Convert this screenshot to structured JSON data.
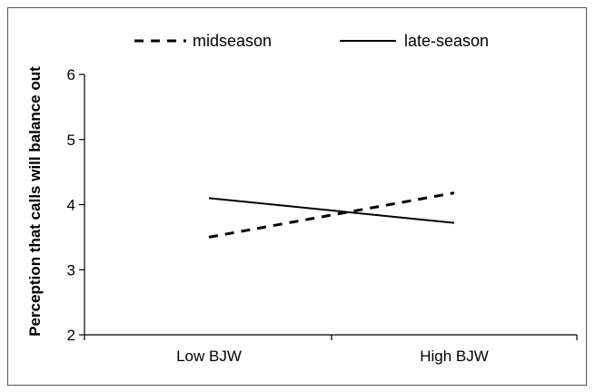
{
  "chart_data": {
    "type": "line",
    "categories": [
      "Low BJW",
      "High BJW"
    ],
    "series": [
      {
        "name": "midseason",
        "values": [
          3.5,
          4.18
        ],
        "style": "dashed",
        "color": "#000000"
      },
      {
        "name": "late-season",
        "values": [
          4.1,
          3.72
        ],
        "style": "solid",
        "color": "#000000"
      }
    ],
    "title": "",
    "xlabel": "",
    "ylabel": "Perception that calls will balance out",
    "ylim": [
      2,
      6
    ],
    "yticks": [
      2,
      3,
      4,
      5,
      6
    ],
    "grid": false,
    "legend": "top"
  }
}
